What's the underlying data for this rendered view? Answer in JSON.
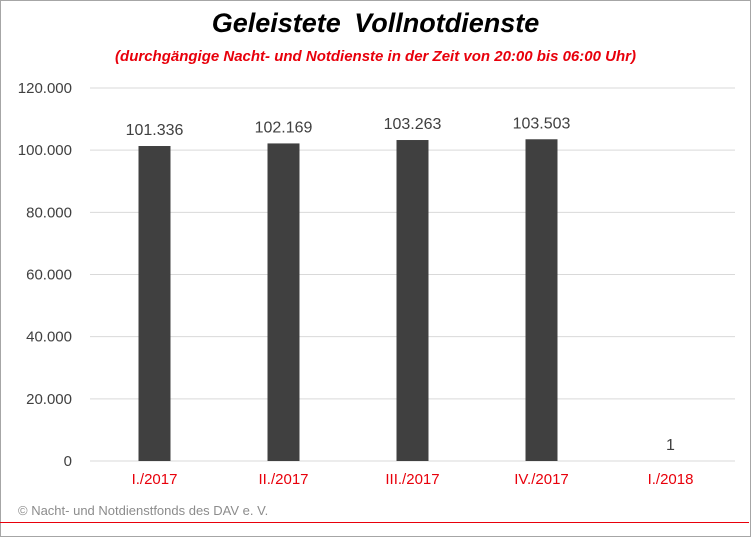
{
  "title": "Geleistete  Vollnotdienste",
  "subtitle": "(durchgängige Nacht- und Notdienste in der Zeit von 20:00 bis 06:00 Uhr)",
  "footer": "© Nacht- und Notdienstfonds des DAV e. V.",
  "colors": {
    "bar": "#404040",
    "grid": "#d9d9d9",
    "category_label": "#e8000b",
    "axis_label": "#404040",
    "subtitle": "#e8000b"
  },
  "chart_data": {
    "type": "bar",
    "categories": [
      "I./2017",
      "II./2017",
      "III./2017",
      "IV./2017",
      "I./2018"
    ],
    "values": [
      101336,
      102169,
      103263,
      103503,
      1
    ],
    "value_labels": [
      "101.336",
      "102.169",
      "103.263",
      "103.503",
      "1"
    ],
    "yticks": [
      0,
      20000,
      40000,
      60000,
      80000,
      100000,
      120000
    ],
    "ytick_labels": [
      "0",
      "20.000",
      "40.000",
      "60.000",
      "80.000",
      "100.000",
      "120.000"
    ],
    "ylim": [
      0,
      120000
    ],
    "grid": true,
    "legend": "none"
  }
}
